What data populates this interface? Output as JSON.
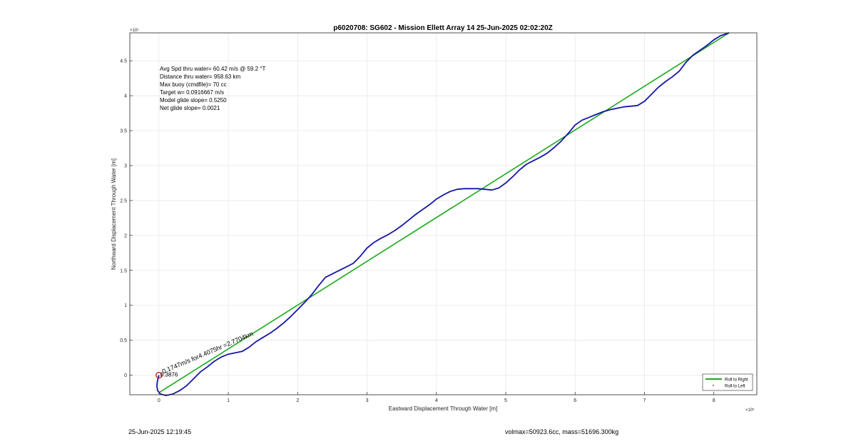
{
  "chart_data": {
    "type": "line",
    "title": "p6020708: SG602 - Mission Ellett Array 14 25-Jun-2025 02:02:20Z",
    "xlabel": "Eastward Displacement Through Water [m]",
    "ylabel": "Northward Displacement Through Water [m]",
    "x_exponent_label": "×10⁵",
    "y_exponent_label": "×10⁵",
    "x_scale_factor": 100000,
    "y_scale_factor": 100000,
    "xlim": [
      -0.42,
      8.62
    ],
    "ylim": [
      -0.28,
      4.9
    ],
    "xticks": [
      0,
      1,
      2,
      3,
      4,
      5,
      6,
      7,
      8
    ],
    "xtick_labels": [
      "0",
      "1",
      "2",
      "3",
      "4",
      "5",
      "6",
      "7",
      "8"
    ],
    "yticks": [
      0,
      0.5,
      1,
      1.5,
      2,
      2.5,
      3,
      3.5,
      4,
      4.5
    ],
    "ytick_labels": [
      "0",
      "0.5",
      "1",
      "1.5",
      "2",
      "2.5",
      "3",
      "3.5",
      "4",
      "4.5"
    ],
    "grid": true,
    "legend_position": "bottom-right",
    "legend": [
      {
        "label": "Roll to Right",
        "color": "#1aaa1a",
        "style": "line"
      },
      {
        "label": "Roll to Left",
        "color": "#e03030",
        "style": "dot"
      }
    ],
    "series": [
      {
        "name": "Roll to Right",
        "color": "#1aaa1a",
        "x": [
          0.0,
          8.22
        ],
        "y": [
          -0.25,
          4.9
        ]
      },
      {
        "color": "#1515a8",
        "x": [
          0.0,
          -0.02,
          -0.03,
          -0.02,
          0.02,
          0.1,
          0.2,
          0.3,
          0.4,
          0.5,
          0.6,
          0.7,
          0.8,
          0.9,
          1.0,
          1.1,
          1.2,
          1.3,
          1.4,
          1.5,
          1.6,
          1.7,
          1.8,
          1.9,
          2.0,
          2.1,
          2.2,
          2.3,
          2.4,
          2.5,
          2.6,
          2.7,
          2.8,
          2.9,
          3.0,
          3.1,
          3.2,
          3.3,
          3.4,
          3.5,
          3.6,
          3.7,
          3.8,
          3.9,
          4.0,
          4.1,
          4.2,
          4.3,
          4.4,
          4.5,
          4.6,
          4.7,
          4.8,
          4.9,
          5.0,
          5.1,
          5.2,
          5.3,
          5.4,
          5.5,
          5.6,
          5.7,
          5.8,
          5.9,
          6.0,
          6.1,
          6.2,
          6.3,
          6.4,
          6.5,
          6.6,
          6.7,
          6.8,
          6.9,
          7.0,
          7.1,
          7.2,
          7.3,
          7.4,
          7.5,
          7.6,
          7.7,
          7.8,
          7.9,
          8.0,
          8.1,
          8.22
        ],
        "y": [
          0.0,
          -0.07,
          -0.15,
          -0.22,
          -0.27,
          -0.29,
          -0.27,
          -0.22,
          -0.15,
          -0.05,
          0.05,
          0.12,
          0.2,
          0.26,
          0.3,
          0.32,
          0.34,
          0.4,
          0.48,
          0.54,
          0.6,
          0.67,
          0.75,
          0.84,
          0.94,
          1.04,
          1.15,
          1.28,
          1.4,
          1.45,
          1.5,
          1.55,
          1.6,
          1.7,
          1.82,
          1.9,
          1.96,
          2.01,
          2.07,
          2.14,
          2.22,
          2.3,
          2.37,
          2.44,
          2.52,
          2.58,
          2.63,
          2.66,
          2.67,
          2.67,
          2.67,
          2.66,
          2.65,
          2.68,
          2.75,
          2.84,
          2.94,
          3.02,
          3.07,
          3.12,
          3.18,
          3.26,
          3.35,
          3.46,
          3.58,
          3.65,
          3.69,
          3.73,
          3.77,
          3.8,
          3.82,
          3.84,
          3.85,
          3.86,
          3.92,
          4.02,
          4.12,
          4.2,
          4.27,
          4.35,
          4.48,
          4.58,
          4.65,
          4.72,
          4.8,
          4.86,
          4.9
        ]
      }
    ],
    "start_marker": {
      "x": 0.0,
      "y": 0.0,
      "color": "#c82020"
    },
    "annotations": [
      {
        "text": "Avg Spd thru water= 60.42 m/s @  59.2 °T"
      },
      {
        "text": "Distance thru water= 958.63 km"
      },
      {
        "text": "Max buoy (cmdfile)= 70 cc"
      },
      {
        "text": "Target w= 0.0916667 m/s"
      },
      {
        "text": "Model glide slope= 0.5250"
      },
      {
        "text": "Net glide slope= 0.0021"
      }
    ],
    "rotated_annotation": {
      "text": "0.1747m/s for4.4075hr =2.7704km",
      "x": 0.0,
      "y": 0.0
    },
    "marker_label": {
      "text": "0.3876",
      "x": 0.0,
      "y": 0.0
    }
  },
  "footer": {
    "timestamp": "25-Jun-2025 12:19:45",
    "info": "volmax=50923.6cc, mass=51696.300kg"
  }
}
